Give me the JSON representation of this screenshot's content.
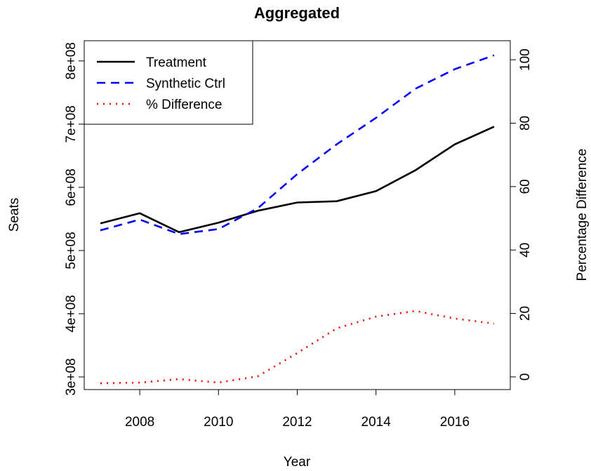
{
  "chart_data": {
    "type": "line",
    "title": "Aggregated",
    "x_label": "Year",
    "y_label": "Seats",
    "y2_label": "Percentage Difference",
    "x": [
      2007,
      2008,
      2009,
      2010,
      2011,
      2012,
      2013,
      2014,
      2015,
      2016,
      2017
    ],
    "series": [
      {
        "name": "Treatment",
        "color": "#000000",
        "linestyle": "solid",
        "values": [
          543000000,
          559000000,
          529000000,
          544000000,
          563000000,
          576000000,
          578000000,
          594000000,
          627000000,
          668000000,
          696000000
        ]
      },
      {
        "name": "Synthetic Ctrl",
        "color": "#0000ff",
        "linestyle": "dashed",
        "values": [
          532000000,
          549000000,
          526000000,
          534000000,
          567000000,
          621000000,
          668000000,
          710000000,
          756000000,
          787000000,
          809000000
        ]
      },
      {
        "name": "% Difference",
        "color": "#ff0000",
        "linestyle": "dotted",
        "axis": "y2",
        "values": [
          -2,
          -1.8,
          -0.7,
          -1.8,
          0.2,
          7.5,
          15.3,
          19,
          20.8,
          18.4,
          16.8
        ]
      }
    ],
    "xlim": [
      2006.59,
      2017.41
    ],
    "xticks": [
      2008,
      2010,
      2012,
      2014,
      2016
    ],
    "ylim": [
      280000000,
      832000000
    ],
    "yticks": [
      {
        "value": 300000000,
        "label": "3e+08"
      },
      {
        "value": 400000000,
        "label": "4e+08"
      },
      {
        "value": 500000000,
        "label": "5e+08"
      },
      {
        "value": 600000000,
        "label": "6e+08"
      },
      {
        "value": 700000000,
        "label": "7e+08"
      },
      {
        "value": 800000000,
        "label": "8e+08"
      }
    ],
    "y2lim": [
      -4,
      106
    ],
    "y2ticks": [
      0,
      20,
      40,
      60,
      80,
      100
    ],
    "grid": false,
    "legend": "top-left"
  }
}
